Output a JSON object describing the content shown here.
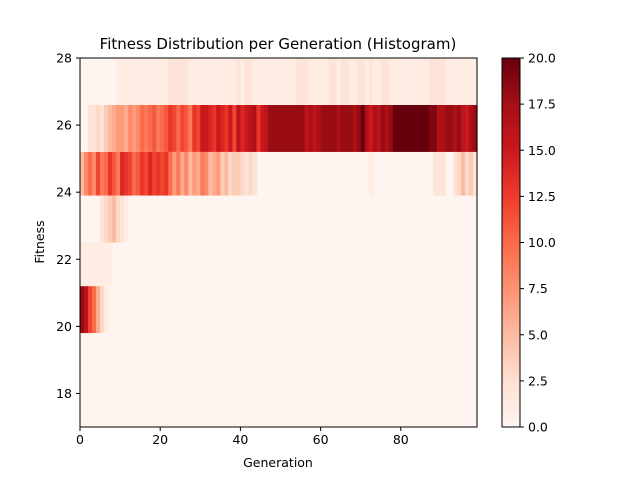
{
  "chart_data": {
    "type": "heatmap",
    "title": "Fitness Distribution per Generation (Histogram)",
    "xlabel": "Generation",
    "ylabel": "Fitness",
    "xlim": [
      0,
      99
    ],
    "ylim": [
      17,
      28
    ],
    "x_ticks": [
      0,
      20,
      40,
      60,
      80
    ],
    "y_ticks": [
      18,
      20,
      22,
      24,
      26,
      28
    ],
    "colormap": "Reds",
    "grid": false,
    "colorbar": {
      "min": 0,
      "max": 20,
      "ticks": [
        "0.0",
        "2.5",
        "5.0",
        "7.5",
        "10.0",
        "12.5",
        "15.0",
        "17.5",
        "20.0"
      ]
    },
    "fitness_bins": [
      {
        "label": "20",
        "y0": 19.8,
        "y1": 21.2
      },
      {
        "label": "22",
        "y0": 21.2,
        "y1": 22.5
      },
      {
        "label": "23",
        "y0": 22.5,
        "y1": 23.9
      },
      {
        "label": "24",
        "y0": 23.9,
        "y1": 25.2
      },
      {
        "label": "26",
        "y0": 25.2,
        "y1": 26.6
      },
      {
        "label": "27",
        "y0": 26.6,
        "y1": 28.0
      }
    ],
    "generation_counts_by_bin": {
      "20": [
        18,
        16,
        12,
        10,
        6,
        3,
        1,
        0,
        0,
        0,
        0,
        0,
        0,
        0,
        0,
        0,
        0,
        0,
        0,
        0,
        0,
        0,
        0,
        0,
        0,
        0,
        0,
        0,
        0,
        0,
        0,
        0,
        0,
        0,
        0,
        0,
        0,
        0,
        0,
        0,
        0,
        0,
        0,
        0,
        0,
        0,
        0,
        0,
        0,
        0,
        0,
        0,
        0,
        0,
        0,
        0,
        0,
        0,
        0,
        0,
        0,
        0,
        0,
        0,
        0,
        0,
        0,
        0,
        0,
        0,
        0,
        0,
        0,
        0,
        0,
        0,
        0,
        0,
        0,
        0,
        0,
        0,
        0,
        0,
        0,
        0,
        0,
        0,
        0,
        0,
        0,
        0,
        0,
        0,
        0,
        0,
        0,
        0,
        0
      ],
      "22": [
        1,
        1,
        1,
        1,
        1,
        1,
        1,
        1,
        0,
        0,
        0,
        0,
        0,
        0,
        0,
        0,
        0,
        0,
        0,
        0,
        0,
        0,
        0,
        0,
        0,
        0,
        0,
        0,
        0,
        0,
        0,
        0,
        0,
        0,
        0,
        0,
        0,
        0,
        0,
        0,
        0,
        0,
        0,
        0,
        0,
        0,
        0,
        0,
        0,
        0,
        0,
        0,
        0,
        0,
        0,
        0,
        0,
        0,
        0,
        0,
        0,
        0,
        0,
        0,
        0,
        0,
        0,
        0,
        0,
        0,
        0,
        0,
        0,
        0,
        0,
        0,
        0,
        0,
        0,
        0,
        0,
        0,
        0,
        0,
        0,
        0,
        0,
        0,
        0,
        0,
        0,
        0,
        0,
        0,
        0,
        0,
        0,
        0,
        0
      ],
      "23": [
        0,
        0,
        0,
        0,
        0,
        2,
        3,
        4,
        5,
        3,
        2,
        1,
        0,
        0,
        0,
        0,
        0,
        0,
        0,
        0,
        0,
        0,
        0,
        0,
        0,
        0,
        0,
        0,
        0,
        0,
        0,
        0,
        0,
        0,
        0,
        0,
        0,
        0,
        0,
        0,
        0,
        0,
        0,
        0,
        0,
        0,
        0,
        0,
        0,
        0,
        0,
        0,
        0,
        0,
        0,
        0,
        0,
        0,
        0,
        0,
        0,
        0,
        0,
        0,
        0,
        0,
        0,
        0,
        0,
        0,
        0,
        0,
        0,
        0,
        0,
        0,
        0,
        0,
        0,
        0,
        0,
        0,
        0,
        0,
        0,
        0,
        0,
        0,
        0,
        0,
        0,
        0,
        0,
        0,
        0,
        0,
        0,
        0,
        0
      ],
      "24": [
        5,
        8,
        10,
        8,
        12,
        9,
        10,
        13,
        11,
        9,
        14,
        13,
        12,
        10,
        11,
        13,
        12,
        14,
        12,
        13,
        12,
        13,
        10,
        7,
        9,
        6,
        8,
        5,
        7,
        6,
        9,
        8,
        5,
        6,
        7,
        4,
        5,
        3,
        4,
        4,
        3,
        2,
        3,
        2,
        0,
        0,
        0,
        0,
        0,
        0,
        0,
        0,
        0,
        0,
        0,
        0,
        0,
        0,
        0,
        0,
        0,
        0,
        0,
        0,
        0,
        0,
        0,
        0,
        0,
        0,
        0,
        0,
        1,
        0,
        0,
        0,
        0,
        0,
        0,
        0,
        0,
        0,
        0,
        0,
        0,
        0,
        0,
        0,
        2,
        2,
        2,
        0,
        0,
        2,
        3,
        5,
        3,
        4,
        2
      ],
      "26": [
        0,
        0,
        2,
        2,
        3,
        2,
        4,
        5,
        6,
        7,
        7,
        6,
        8,
        7,
        8,
        10,
        9,
        10,
        11,
        9,
        10,
        11,
        13,
        12,
        10,
        12,
        11,
        9,
        13,
        12,
        15,
        15,
        14,
        13,
        15,
        14,
        13,
        15,
        12,
        16,
        14,
        15,
        16,
        17,
        13,
        15,
        16,
        18,
        18,
        18,
        18,
        18,
        18,
        18,
        18,
        18,
        16,
        17,
        16,
        17,
        18,
        18,
        18,
        18,
        17,
        18,
        18,
        18,
        17,
        18,
        20,
        17,
        15,
        17,
        16,
        18,
        17,
        18,
        20,
        20,
        20,
        20,
        20,
        20,
        20,
        20,
        20,
        19,
        19,
        17,
        17,
        18,
        18,
        17,
        18,
        16,
        15,
        17,
        18
      ],
      "27": [
        0,
        0,
        0,
        0,
        0,
        0,
        0,
        0,
        0,
        1,
        1,
        1,
        1,
        1,
        1,
        1,
        1,
        1,
        1,
        1,
        1,
        1,
        2,
        2,
        2,
        2,
        2,
        1,
        1,
        1,
        1,
        1,
        1,
        1,
        1,
        1,
        1,
        1,
        1,
        2,
        1,
        2,
        2,
        1,
        1,
        1,
        1,
        1,
        1,
        1,
        1,
        1,
        1,
        1,
        2,
        2,
        2,
        1,
        1,
        1,
        1,
        1,
        2,
        2,
        1,
        2,
        2,
        1,
        1,
        2,
        2,
        1,
        2,
        1,
        1,
        2,
        2,
        1,
        1,
        1,
        1,
        1,
        1,
        1,
        1,
        1,
        1,
        2,
        2,
        2,
        2,
        1,
        1,
        1,
        1,
        1,
        1,
        1,
        1
      ]
    }
  }
}
